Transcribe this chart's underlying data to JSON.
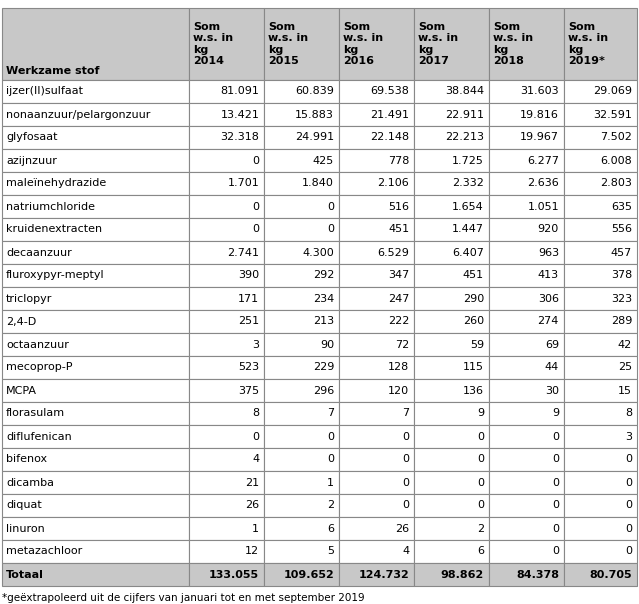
{
  "col_headers": [
    "Werkzame stof",
    "Som\nw.s. in\nkg\n2014",
    "Som\nw.s. in\nkg\n2015",
    "Som\nw.s. in\nkg\n2016",
    "Som\nw.s. in\nkg\n2017",
    "Som\nw.s. in\nkg\n2018",
    "Som\nw.s. in\nkg\n2019*"
  ],
  "rows": [
    [
      "ijzer(II)sulfaat",
      "81.091",
      "60.839",
      "69.538",
      "38.844",
      "31.603",
      "29.069"
    ],
    [
      "nonaanzuur/pelargonzuur",
      "13.421",
      "15.883",
      "21.491",
      "22.911",
      "19.816",
      "32.591"
    ],
    [
      "glyfosaat",
      "32.318",
      "24.991",
      "22.148",
      "22.213",
      "19.967",
      "7.502"
    ],
    [
      "azijnzuur",
      "0",
      "425",
      "778",
      "1.725",
      "6.277",
      "6.008"
    ],
    [
      "maleïnehydrazide",
      "1.701",
      "1.840",
      "2.106",
      "2.332",
      "2.636",
      "2.803"
    ],
    [
      "natriumchloride",
      "0",
      "0",
      "516",
      "1.654",
      "1.051",
      "635"
    ],
    [
      "kruidenextracten",
      "0",
      "0",
      "451",
      "1.447",
      "920",
      "556"
    ],
    [
      "decaanzuur",
      "2.741",
      "4.300",
      "6.529",
      "6.407",
      "963",
      "457"
    ],
    [
      "fluroxypyr-meptyl",
      "390",
      "292",
      "347",
      "451",
      "413",
      "378"
    ],
    [
      "triclopyr",
      "171",
      "234",
      "247",
      "290",
      "306",
      "323"
    ],
    [
      "2,4-D",
      "251",
      "213",
      "222",
      "260",
      "274",
      "289"
    ],
    [
      "octaanzuur",
      "3",
      "90",
      "72",
      "59",
      "69",
      "42"
    ],
    [
      "mecoprop-P",
      "523",
      "229",
      "128",
      "115",
      "44",
      "25"
    ],
    [
      "MCPA",
      "375",
      "296",
      "120",
      "136",
      "30",
      "15"
    ],
    [
      "florasulam",
      "8",
      "7",
      "7",
      "9",
      "9",
      "8"
    ],
    [
      "diflufenican",
      "0",
      "0",
      "0",
      "0",
      "0",
      "3"
    ],
    [
      "bifenox",
      "4",
      "0",
      "0",
      "0",
      "0",
      "0"
    ],
    [
      "dicamba",
      "21",
      "1",
      "0",
      "0",
      "0",
      "0"
    ],
    [
      "diquat",
      "26",
      "2",
      "0",
      "0",
      "0",
      "0"
    ],
    [
      "linuron",
      "1",
      "6",
      "26",
      "2",
      "0",
      "0"
    ],
    [
      "metazachloor",
      "12",
      "5",
      "4",
      "6",
      "0",
      "0"
    ]
  ],
  "totaal_row": [
    "Totaal",
    "133.055",
    "109.652",
    "124.732",
    "98.862",
    "84.378",
    "80.705"
  ],
  "footnote": "*geëxtrapoleerd uit de cijfers van januari tot en met september 2019",
  "header_bg": "#c8c8c8",
  "totaal_bg": "#c8c8c8",
  "white_bg": "#ffffff",
  "grid_color": "#888888",
  "font_size": 8.0,
  "header_font_size": 8.0
}
